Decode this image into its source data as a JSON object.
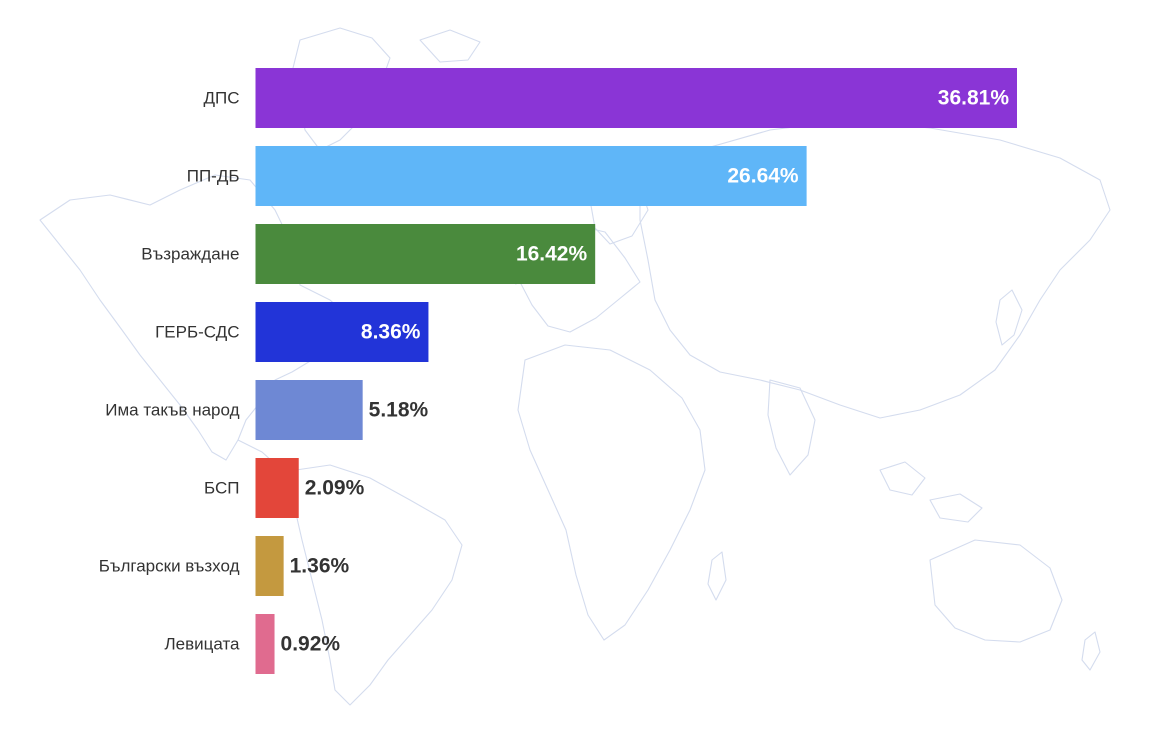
{
  "chart_data": {
    "type": "bar",
    "orientation": "horizontal",
    "categories": [
      "ДПС",
      "ПП-ДБ",
      "Възраждане",
      "ГЕРБ-СДС",
      "Има такъв народ",
      "БСП",
      "Български възход",
      "Левицата"
    ],
    "values": [
      36.81,
      26.64,
      16.42,
      8.36,
      5.18,
      2.09,
      1.36,
      0.92
    ],
    "value_labels": [
      "36.81%",
      "26.64%",
      "16.42%",
      "8.36%",
      "5.18%",
      "2.09%",
      "1.36%",
      "0.92%"
    ],
    "colors": [
      "#8a35d6",
      "#5fb6f8",
      "#4a8a3d",
      "#2234d8",
      "#6e88d4",
      "#e3463a",
      "#c4993f",
      "#e06b8f"
    ],
    "title": "",
    "xlabel": "",
    "ylabel": "",
    "xlim": [
      0,
      36.81
    ],
    "grid": false,
    "legend": "none",
    "background": "world-map-outline"
  }
}
